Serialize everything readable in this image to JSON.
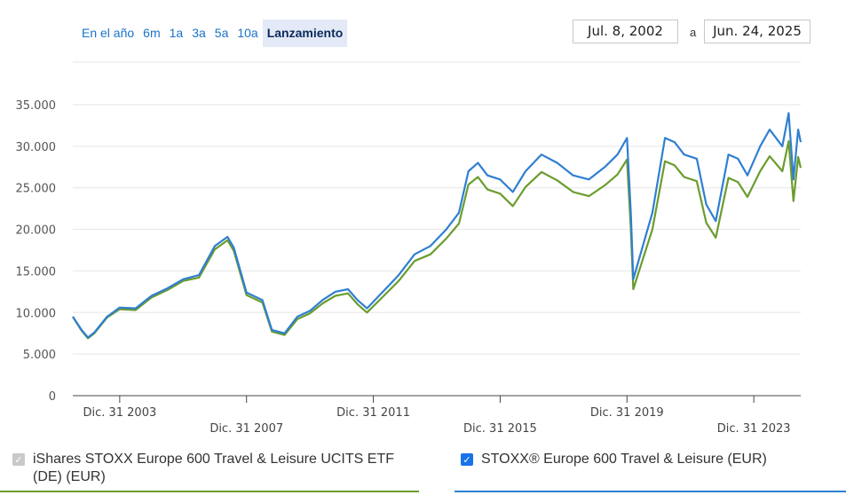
{
  "range_buttons": [
    "En el año",
    "6m",
    "1a",
    "3a",
    "5a",
    "10a",
    "Lanzamiento"
  ],
  "active_range": "Lanzamiento",
  "date_range": {
    "start": "Jul. 8, 2002",
    "separator": "a",
    "end": "Jun. 24, 2025"
  },
  "legend": {
    "fund": {
      "label": "iShares STOXX Europe 600 Travel & Leisure UCITS ETF (DE) (EUR)",
      "color": "#6b9c2e",
      "checked": true,
      "enabled": false
    },
    "index": {
      "label": "STOXX® Europe 600 Travel & Leisure (EUR)",
      "color": "#2f7fd1",
      "checked": true,
      "enabled": true
    }
  },
  "chart_data": {
    "type": "line",
    "title": "",
    "xlabel": "",
    "ylabel": "",
    "ylim": [
      0,
      35000
    ],
    "yticks": [
      0,
      5000,
      10000,
      15000,
      20000,
      25000,
      30000,
      35000
    ],
    "ytick_labels": [
      "0",
      "5.000",
      "10.000",
      "15.000",
      "20.000",
      "25.000",
      "30.000",
      "35.000"
    ],
    "xlim": [
      2002.52,
      2025.48
    ],
    "xticks": [
      2004.0,
      2008.0,
      2012.0,
      2016.0,
      2020.0,
      2024.0
    ],
    "xtick_labels": [
      "Dic. 31 2003",
      "Dic. 31 2007",
      "Dic. 31 2011",
      "Dic. 31 2015",
      "Dic. 31 2019",
      "Dic. 31 2023"
    ],
    "x": [
      2002.52,
      2002.8,
      2003.0,
      2003.2,
      2003.6,
      2004.0,
      2004.5,
      2005.0,
      2005.5,
      2006.0,
      2006.5,
      2007.0,
      2007.4,
      2007.6,
      2008.0,
      2008.5,
      2008.8,
      2009.2,
      2009.6,
      2010.0,
      2010.4,
      2010.8,
      2011.2,
      2011.5,
      2011.8,
      2012.3,
      2012.8,
      2013.3,
      2013.8,
      2014.3,
      2014.7,
      2015.0,
      2015.3,
      2015.6,
      2016.0,
      2016.4,
      2016.8,
      2017.3,
      2017.8,
      2018.3,
      2018.8,
      2019.3,
      2019.7,
      2020.0,
      2020.12,
      2020.2,
      2020.5,
      2020.8,
      2021.2,
      2021.5,
      2021.8,
      2022.2,
      2022.5,
      2022.8,
      2023.2,
      2023.5,
      2023.8,
      2024.2,
      2024.5,
      2024.9,
      2025.1,
      2025.25,
      2025.4,
      2025.48
    ],
    "series": [
      {
        "name": "STOXX® Europe 600 Travel & Leisure (EUR)",
        "color": "#2f7fd1",
        "values": [
          9500,
          7900,
          7000,
          7600,
          9500,
          10600,
          10500,
          12000,
          12900,
          14000,
          14500,
          18000,
          19100,
          17800,
          12400,
          11500,
          7900,
          7500,
          9500,
          10200,
          11500,
          12500,
          12800,
          11500,
          10500,
          12500,
          14500,
          17000,
          18000,
          20000,
          22000,
          27000,
          28000,
          26500,
          26000,
          24500,
          27000,
          29000,
          28000,
          26500,
          26000,
          27500,
          29000,
          31000,
          22000,
          14000,
          18000,
          22000,
          31000,
          30500,
          29000,
          28500,
          23000,
          21000,
          29000,
          28500,
          26500,
          30000,
          32000,
          30000,
          34000,
          26000,
          32000,
          30500
        ]
      },
      {
        "name": "iShares STOXX Europe 600 Travel & Leisure UCITS ETF (DE) (EUR)",
        "color": "#6b9c2e",
        "values": [
          9500,
          7800,
          6900,
          7500,
          9400,
          10400,
          10300,
          11800,
          12700,
          13800,
          14200,
          17600,
          18700,
          17400,
          12100,
          11200,
          7700,
          7300,
          9200,
          9900,
          11100,
          12000,
          12300,
          11000,
          10000,
          11900,
          13800,
          16200,
          17000,
          18900,
          20700,
          25400,
          26300,
          24800,
          24300,
          22800,
          25100,
          26900,
          25900,
          24500,
          24000,
          25300,
          26600,
          28400,
          20100,
          12800,
          16400,
          20000,
          28200,
          27700,
          26300,
          25800,
          20800,
          19000,
          26200,
          25700,
          23900,
          27000,
          28800,
          27000,
          30600,
          23400,
          28700,
          27400
        ]
      }
    ]
  }
}
